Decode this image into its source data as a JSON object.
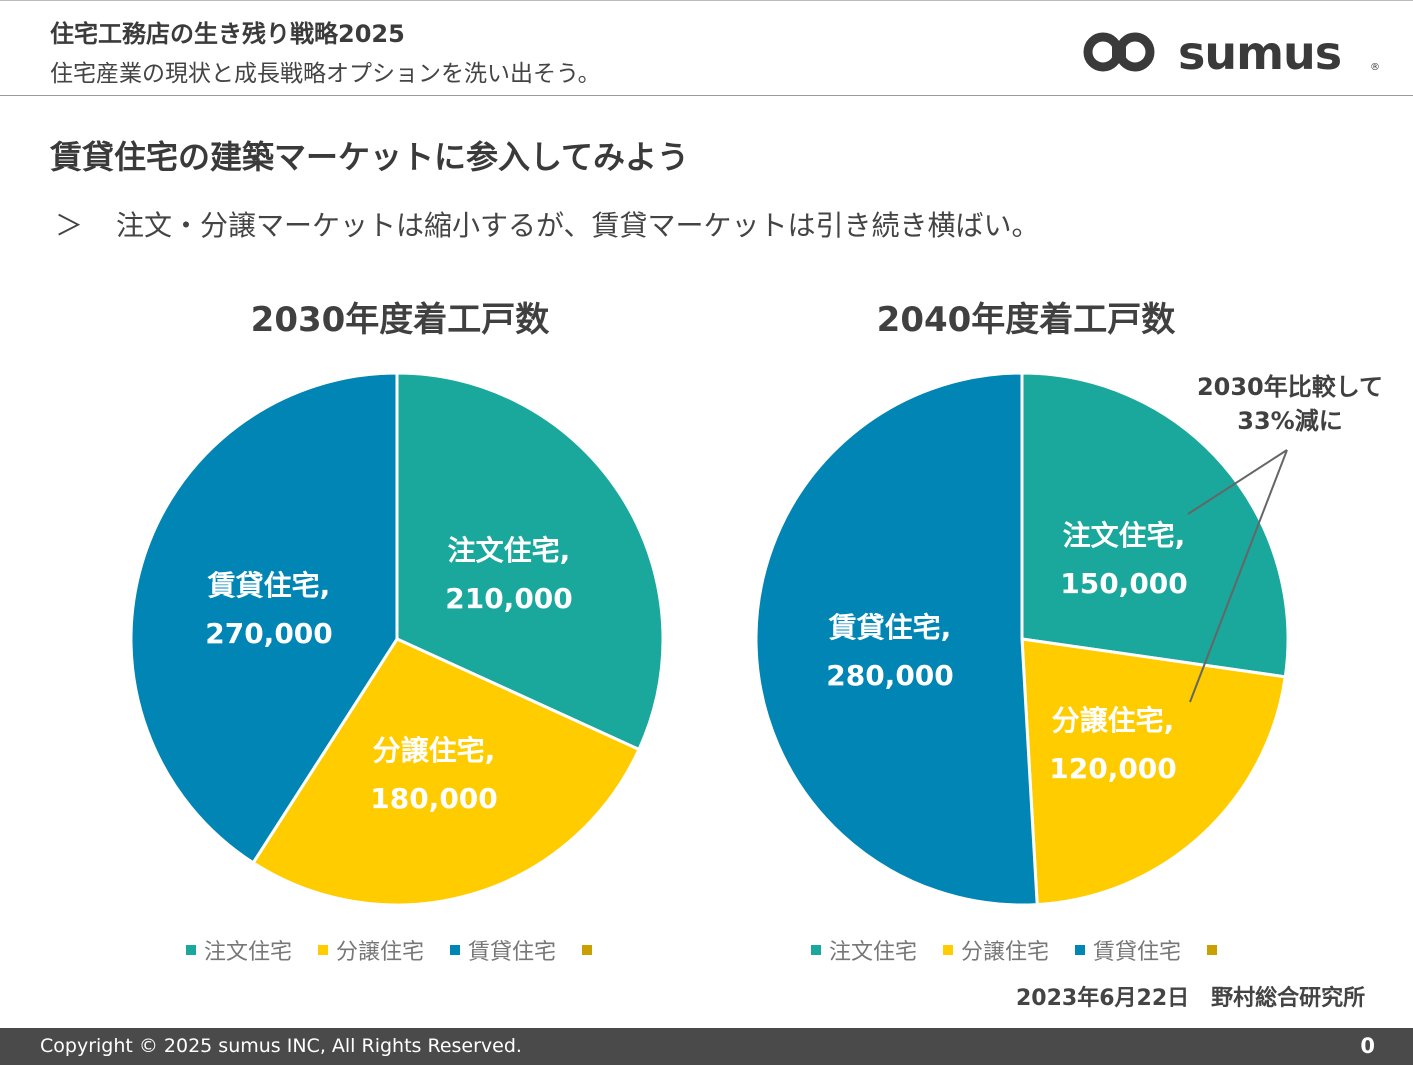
{
  "header": {
    "title": "住宅工務店の生き残り戦略2025",
    "subtitle": "住宅産業の現状と成長戦略オプションを洗い出そう。",
    "logo_text": "sumus"
  },
  "section": {
    "title": "賃貸住宅の建築マーケットに参入してみよう",
    "bullet_marker": "＞",
    "bullet_text": "注文・分譲マーケットは縮小するが、賃貸マーケットは引き続き横ばい。"
  },
  "chart_data": [
    {
      "type": "pie",
      "title": "2030年度着工戸数",
      "categories": [
        "注文住宅",
        "分譲住宅",
        "賃貸住宅"
      ],
      "values": [
        210000,
        180000,
        270000
      ],
      "value_labels": [
        "210,000",
        "180,000",
        "270,000"
      ],
      "colors": [
        "#1AA79C",
        "#FFCC00",
        "#0085B5"
      ],
      "legend": "bottom"
    },
    {
      "type": "pie",
      "title": "2040年度着工戸数",
      "categories": [
        "注文住宅",
        "分譲住宅",
        "賃貸住宅"
      ],
      "values": [
        150000,
        120000,
        280000
      ],
      "value_labels": [
        "150,000",
        "120,000",
        "280,000"
      ],
      "colors": [
        "#1AA79C",
        "#FFCC00",
        "#0085B5"
      ],
      "legend": "bottom"
    }
  ],
  "legend_extra_color": "#C9A000",
  "annotation": {
    "line1": "2030年比較して",
    "line2": "33%減に"
  },
  "source": "2023年6月22日　野村総合研究所",
  "footer": {
    "copyright": "Copyright © 2025 sumus INC, All Rights Reserved.",
    "page": "0"
  }
}
